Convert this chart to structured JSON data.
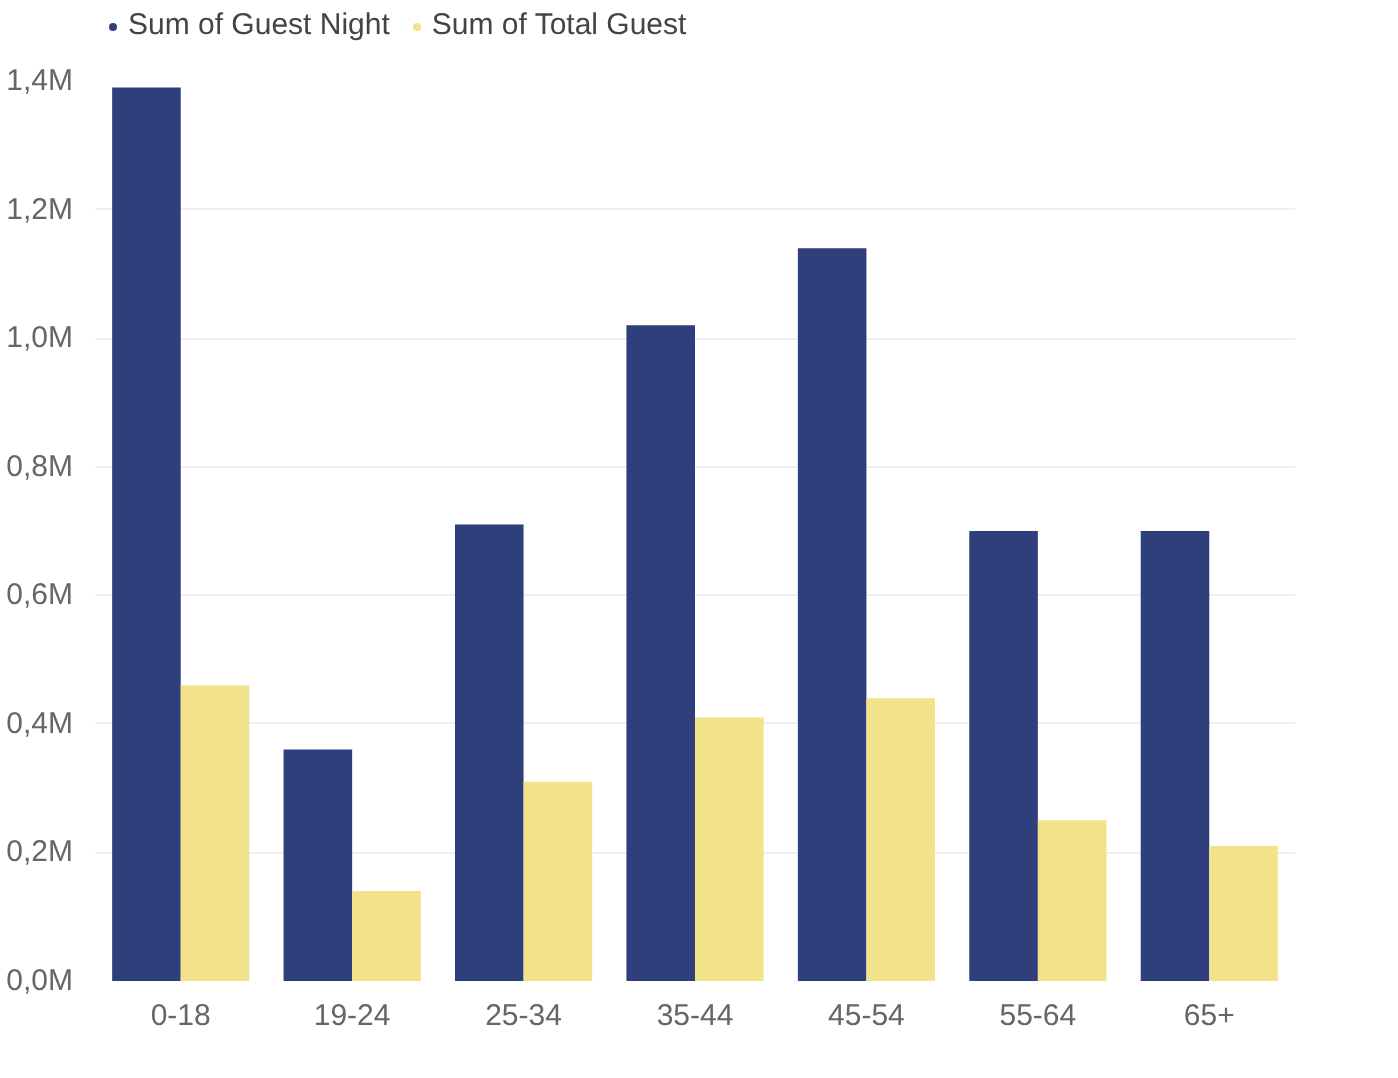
{
  "chart_data": {
    "type": "bar",
    "categories": [
      "0-18",
      "19-24",
      "25-34",
      "35-44",
      "45-54",
      "55-64",
      "65+"
    ],
    "series": [
      {
        "name": "Sum of Guest Night",
        "color": "#2e3f7c",
        "values": [
          1390000,
          360000,
          710000,
          1020000,
          1140000,
          700000,
          700000
        ]
      },
      {
        "name": "Sum of Total Guest",
        "color": "#f2e28a",
        "values": [
          460000,
          140000,
          310000,
          410000,
          440000,
          250000,
          210000
        ]
      }
    ],
    "ylim": [
      0,
      1400000
    ],
    "yticks": [
      {
        "value": 0,
        "label": "0,0M"
      },
      {
        "value": 200000,
        "label": "0,2M"
      },
      {
        "value": 400000,
        "label": "0,4M"
      },
      {
        "value": 600000,
        "label": "0,6M"
      },
      {
        "value": 800000,
        "label": "0,8M"
      },
      {
        "value": 1000000,
        "label": "1,0M"
      },
      {
        "value": 1200000,
        "label": "1,2M"
      },
      {
        "value": 1400000,
        "label": "1,4M"
      }
    ],
    "grid": "y",
    "legend": "top left"
  }
}
